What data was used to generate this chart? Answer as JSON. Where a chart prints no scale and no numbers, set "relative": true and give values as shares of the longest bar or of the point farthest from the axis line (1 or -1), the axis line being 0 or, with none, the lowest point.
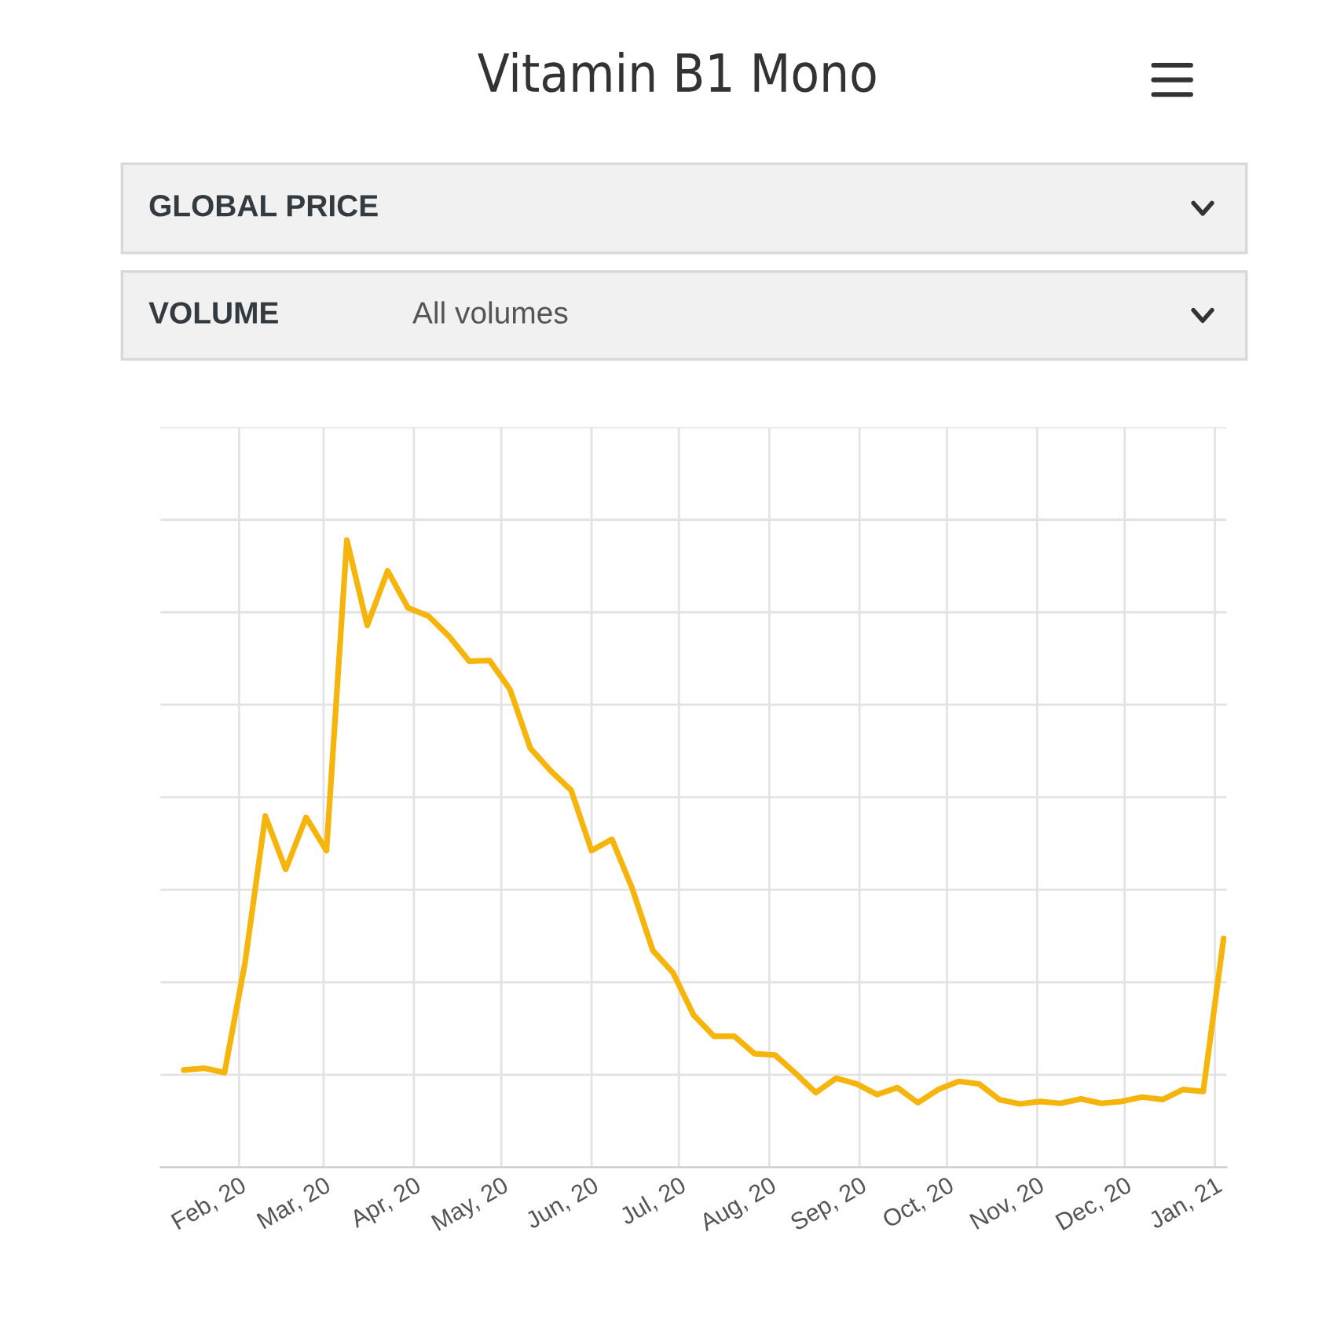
{
  "chart_data": {
    "type": "line",
    "title": "Vitamin B1 Mono",
    "relative": true,
    "grid": true,
    "annotations": [
      "GLOBAL PRICE",
      "VOLUME",
      "All volumes"
    ],
    "x": [
      "2020-01-13",
      "2020-01-20",
      "2020-01-27",
      "2020-02-03",
      "2020-02-10",
      "2020-02-17",
      "2020-02-24",
      "2020-03-02",
      "2020-03-09",
      "2020-03-16",
      "2020-03-23",
      "2020-03-30",
      "2020-04-06",
      "2020-04-13",
      "2020-04-20",
      "2020-04-27",
      "2020-05-04",
      "2020-05-11",
      "2020-05-18",
      "2020-05-25",
      "2020-06-01",
      "2020-06-08",
      "2020-06-15",
      "2020-06-22",
      "2020-06-29",
      "2020-07-06",
      "2020-07-13",
      "2020-07-20",
      "2020-07-27",
      "2020-08-03",
      "2020-08-10",
      "2020-08-17",
      "2020-08-24",
      "2020-08-31",
      "2020-09-07",
      "2020-09-14",
      "2020-09-21",
      "2020-09-28",
      "2020-10-05",
      "2020-10-12",
      "2020-10-19",
      "2020-10-26",
      "2020-11-02",
      "2020-11-09",
      "2020-11-16",
      "2020-11-23",
      "2020-11-30",
      "2020-12-07",
      "2020-12-14",
      "2020-12-21",
      "2020-12-28",
      "2021-01-04"
    ],
    "series": [
      {
        "color": "#f5b50c",
        "values": [
          0.155,
          0.158,
          0.151,
          0.325,
          0.56,
          0.475,
          0.558,
          0.505,
          1,
          0.864,
          0.951,
          0.892,
          0.879,
          0.847,
          0.807,
          0.808,
          0.762,
          0.668,
          0.632,
          0.601,
          0.505,
          0.523,
          0.444,
          0.346,
          0.31,
          0.243,
          0.209,
          0.209,
          0.181,
          0.179,
          0.15,
          0.119,
          0.142,
          0.133,
          0.116,
          0.127,
          0.103,
          0.124,
          0.137,
          0.133,
          0.108,
          0.101,
          0.105,
          0.102,
          0.109,
          0.102,
          0.105,
          0.112,
          0.108,
          0.124,
          0.121,
          0.365
        ]
      }
    ],
    "xlim": [
      "2020-01-05",
      "2021-01-05"
    ],
    "xticks": [
      {
        "value": "2020-02-01",
        "label": "Feb, 20"
      },
      {
        "value": "2020-03-01",
        "label": "Mar, 20"
      },
      {
        "value": "2020-04-01",
        "label": "Apr, 20"
      },
      {
        "value": "2020-05-01",
        "label": "May, 20"
      },
      {
        "value": "2020-06-01",
        "label": "Jun, 20"
      },
      {
        "value": "2020-07-01",
        "label": "Jul, 20"
      },
      {
        "value": "2020-08-01",
        "label": "Aug, 20"
      },
      {
        "value": "2020-09-01",
        "label": "Sep, 20"
      },
      {
        "value": "2020-10-01",
        "label": "Oct, 20"
      },
      {
        "value": "2020-11-01",
        "label": "Nov, 20"
      },
      {
        "value": "2020-12-01",
        "label": "Dec, 20"
      },
      {
        "value": "2021-01-01",
        "label": "Jan, 21"
      }
    ],
    "marker": "none",
    "line_style": "solid"
  }
}
